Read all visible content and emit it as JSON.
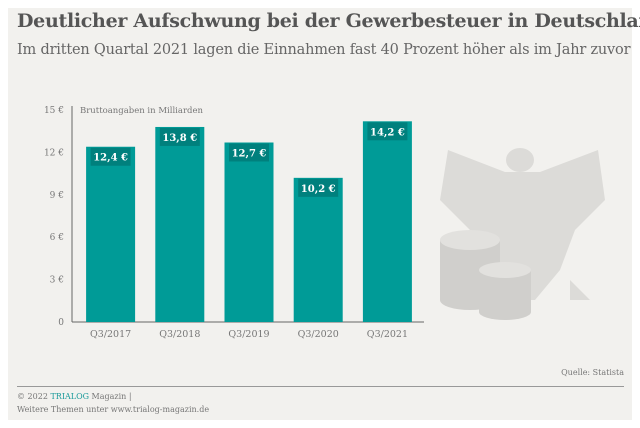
{
  "title": "Deutlicher Aufschwung bei der Gewerbesteuer in Deutschland",
  "subtitle": "Im dritten Quartal 2021 lagen die Einnahmen fast 40 Prozent höher als im Jahr zuvor",
  "chart_data": {
    "type": "bar",
    "title": "Deutlicher Aufschwung bei der Gewerbesteuer in Deutschland",
    "unit_note": "Bruttoangaben in Milliarden",
    "categories": [
      "Q3/2017",
      "Q3/2018",
      "Q3/2019",
      "Q3/2020",
      "Q3/2021"
    ],
    "values": [
      12.4,
      13.8,
      12.7,
      10.2,
      14.2
    ],
    "data_labels": [
      "12,4 €",
      "13,8 €",
      "12,7 €",
      "10,2 €",
      "14,2 €"
    ],
    "yticks": [
      0,
      3,
      6,
      9,
      12,
      15
    ],
    "ytick_labels": [
      "0",
      "3 €",
      "6 €",
      "9 €",
      "12 €",
      "15 €"
    ],
    "ylim": [
      0,
      15
    ],
    "xlabel": "",
    "ylabel": "",
    "grid": false,
    "colors": {
      "bar": "#009b97",
      "label_box": "#00807d"
    }
  },
  "source": "Quelle: Statista",
  "footer": {
    "copyright": "© 2022 ",
    "brand": "TRIALOG",
    "magazine": " Magazin |",
    "more": "Weitere Themen unter www.trialog-magazin.de"
  }
}
